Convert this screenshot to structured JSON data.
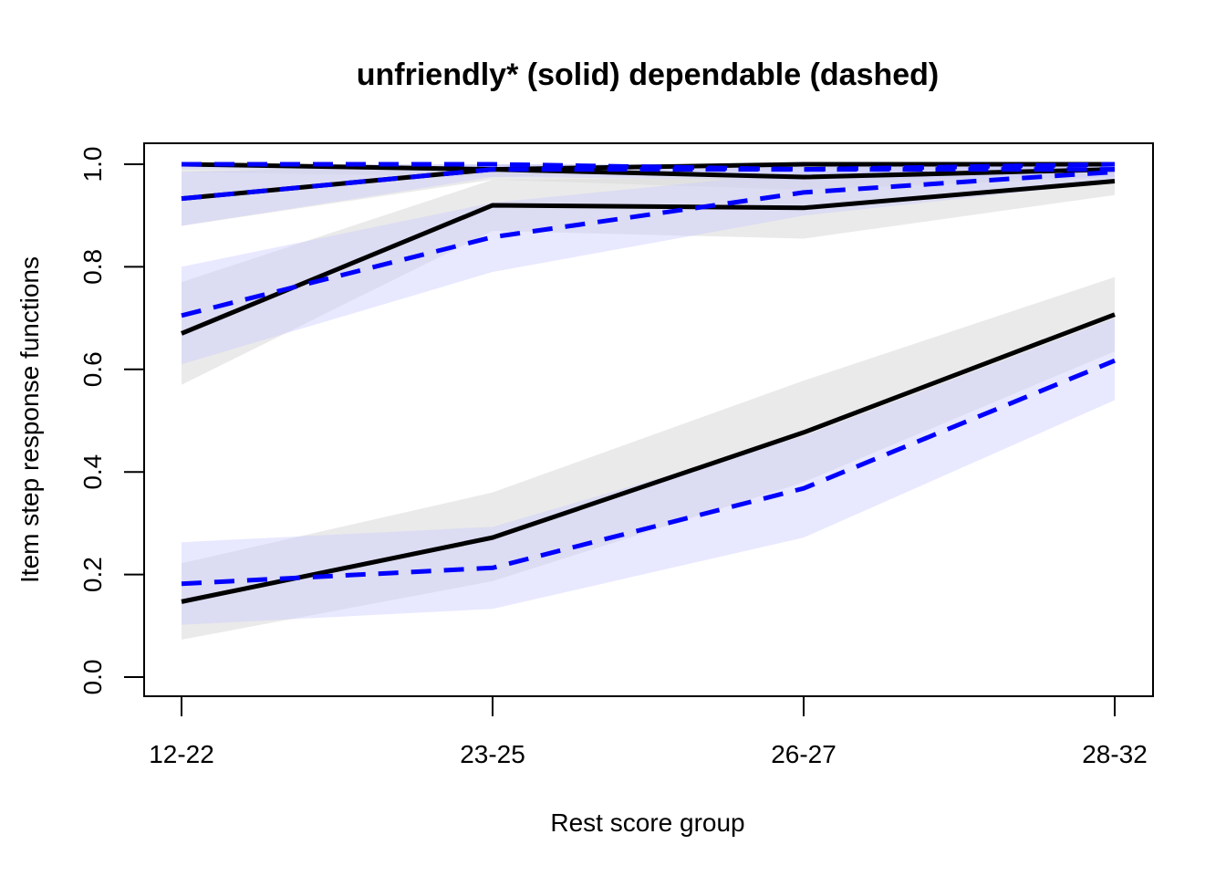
{
  "chart_data": {
    "type": "line",
    "title": "unfriendly* (solid) dependable (dashed)",
    "xlabel": "Rest score group",
    "ylabel": "Item step response functions",
    "categories": [
      "12-22",
      "23-25",
      "26-27",
      "28-32"
    ],
    "ylim": [
      0,
      1
    ],
    "yticks": [
      "0.0",
      "0.2",
      "0.4",
      "0.6",
      "0.8",
      "1.0"
    ],
    "grid": false,
    "legend": "none",
    "colors": {
      "solid": "#000000",
      "dashed": "#0000ff",
      "band_solid": "#d9d9d9",
      "band_dashed": "#ccccff"
    },
    "series": [
      {
        "group": "unfriendly",
        "style": "solid",
        "step": 1,
        "values": [
          1.0,
          0.99,
          1.0,
          1.0
        ],
        "lower": [
          0.985,
          0.975,
          0.99,
          0.99
        ],
        "upper": [
          1.0,
          1.0,
          1.0,
          1.0
        ]
      },
      {
        "group": "unfriendly",
        "style": "solid",
        "step": 2,
        "values": [
          0.933,
          0.99,
          0.975,
          0.99
        ],
        "lower": [
          0.88,
          0.97,
          0.95,
          0.975
        ],
        "upper": [
          0.985,
          1.0,
          0.995,
          1.0
        ]
      },
      {
        "group": "unfriendly",
        "style": "solid",
        "step": 3,
        "values": [
          0.67,
          0.92,
          0.915,
          0.967
        ],
        "lower": [
          0.57,
          0.87,
          0.855,
          0.94
        ],
        "upper": [
          0.77,
          0.97,
          0.975,
          0.99
        ]
      },
      {
        "group": "unfriendly",
        "style": "solid",
        "step": 4,
        "values": [
          0.147,
          0.272,
          0.477,
          0.707
        ],
        "lower": [
          0.073,
          0.187,
          0.38,
          0.635
        ],
        "upper": [
          0.222,
          0.36,
          0.578,
          0.78
        ]
      },
      {
        "group": "dependable",
        "style": "dashed",
        "step": 1,
        "values": [
          1.0,
          1.0,
          0.99,
          1.0
        ],
        "lower": [
          0.99,
          0.99,
          0.975,
          0.99
        ],
        "upper": [
          1.0,
          1.0,
          1.0,
          1.0
        ]
      },
      {
        "group": "dependable",
        "style": "dashed",
        "step": 2,
        "values": [
          0.933,
          0.99,
          0.99,
          0.99
        ],
        "lower": [
          0.88,
          0.975,
          0.97,
          0.975
        ],
        "upper": [
          0.985,
          1.0,
          1.0,
          1.0
        ]
      },
      {
        "group": "dependable",
        "style": "dashed",
        "step": 3,
        "values": [
          0.705,
          0.858,
          0.945,
          0.985
        ],
        "lower": [
          0.61,
          0.79,
          0.9,
          0.965
        ],
        "upper": [
          0.8,
          0.925,
          0.985,
          1.0
        ]
      },
      {
        "group": "dependable",
        "style": "dashed",
        "step": 4,
        "values": [
          0.182,
          0.213,
          0.368,
          0.617
        ],
        "lower": [
          0.102,
          0.133,
          0.272,
          0.54
        ],
        "upper": [
          0.263,
          0.293,
          0.47,
          0.7
        ]
      }
    ]
  }
}
